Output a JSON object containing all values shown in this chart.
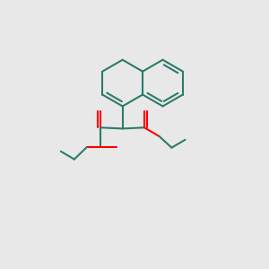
{
  "bg_color": "#e8e8e8",
  "bond_color": "#2d7a6a",
  "oxygen_color": "#ff0000",
  "line_width": 1.5,
  "fig_size": [
    3.0,
    3.0
  ],
  "dpi": 100
}
